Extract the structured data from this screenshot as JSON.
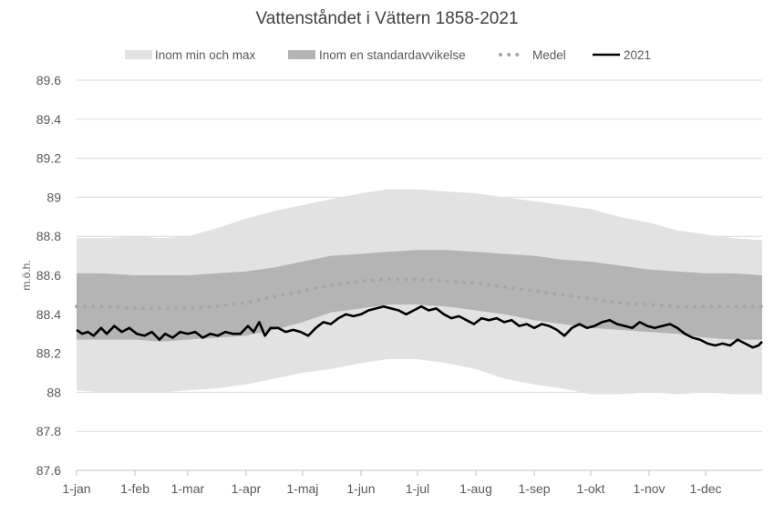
{
  "chart_data": {
    "type": "area",
    "title": "Vattenståndet i Vättern 1858-2021",
    "xlabel": "",
    "ylabel": "m.ö.h.",
    "ylim": [
      87.6,
      89.6
    ],
    "yticks": [
      "87.6",
      "87.8",
      "88",
      "88.2",
      "88.4",
      "88.6",
      "88.8",
      "89",
      "89.2",
      "89.4",
      "89.6"
    ],
    "xlim": [
      1,
      365
    ],
    "month_ticks": [
      {
        "label": "1-jan",
        "day": 1
      },
      {
        "label": "1-feb",
        "day": 32
      },
      {
        "label": "1-mar",
        "day": 60
      },
      {
        "label": "1-apr",
        "day": 91
      },
      {
        "label": "1-maj",
        "day": 121
      },
      {
        "label": "1-jun",
        "day": 152
      },
      {
        "label": "1-jul",
        "day": 182
      },
      {
        "label": "1-aug",
        "day": 213
      },
      {
        "label": "1-sep",
        "day": 244
      },
      {
        "label": "1-okt",
        "day": 274
      },
      {
        "label": "1-nov",
        "day": 305
      },
      {
        "label": "1-dec",
        "day": 335
      }
    ],
    "grid": true,
    "legend_position": "top",
    "legend": [
      {
        "label": "Inom min och max",
        "color": "#e2e2e2"
      },
      {
        "label": "Inom en standardavvikelse",
        "color": "#b4b4b4"
      },
      {
        "label": "Medel",
        "color": "#a6a6a6"
      },
      {
        "label": "2021",
        "color": "#000000"
      }
    ],
    "series": [
      {
        "name": "Inom min och max",
        "day": [
          1,
          15,
          32,
          46,
          60,
          75,
          91,
          106,
          121,
          136,
          152,
          166,
          182,
          197,
          213,
          228,
          244,
          259,
          274,
          289,
          305,
          320,
          335,
          350,
          365
        ],
        "low": [
          88.01,
          88.0,
          88.0,
          88.0,
          88.01,
          88.02,
          88.04,
          88.07,
          88.1,
          88.12,
          88.15,
          88.17,
          88.17,
          88.15,
          88.12,
          88.07,
          88.04,
          88.02,
          87.99,
          87.99,
          88.0,
          87.99,
          88.0,
          87.99,
          87.99
        ],
        "high": [
          88.79,
          88.79,
          88.8,
          88.79,
          88.8,
          88.84,
          88.89,
          88.93,
          88.96,
          88.99,
          89.02,
          89.04,
          89.04,
          89.03,
          89.02,
          89.0,
          88.98,
          88.96,
          88.94,
          88.9,
          88.87,
          88.83,
          88.81,
          88.79,
          88.78
        ]
      },
      {
        "name": "Inom en standardavvikelse",
        "day": [
          1,
          15,
          32,
          46,
          60,
          75,
          91,
          106,
          121,
          136,
          152,
          166,
          182,
          197,
          213,
          228,
          244,
          259,
          274,
          289,
          305,
          320,
          335,
          350,
          365
        ],
        "low": [
          88.27,
          88.27,
          88.27,
          88.26,
          88.27,
          88.28,
          88.29,
          88.32,
          88.36,
          88.41,
          88.43,
          88.45,
          88.45,
          88.44,
          88.42,
          88.4,
          88.37,
          88.35,
          88.33,
          88.32,
          88.31,
          88.3,
          88.28,
          88.27,
          88.27
        ],
        "high": [
          88.61,
          88.61,
          88.6,
          88.6,
          88.6,
          88.61,
          88.62,
          88.64,
          88.67,
          88.7,
          88.71,
          88.72,
          88.73,
          88.73,
          88.72,
          88.71,
          88.7,
          88.68,
          88.67,
          88.65,
          88.63,
          88.62,
          88.61,
          88.61,
          88.6
        ]
      },
      {
        "name": "Medel",
        "day": [
          1,
          15,
          32,
          46,
          60,
          75,
          91,
          106,
          121,
          136,
          152,
          166,
          182,
          197,
          213,
          228,
          244,
          259,
          274,
          289,
          305,
          320,
          335,
          350,
          365
        ],
        "values": [
          88.44,
          88.44,
          88.43,
          88.43,
          88.43,
          88.44,
          88.46,
          88.49,
          88.52,
          88.55,
          88.57,
          88.58,
          88.58,
          88.57,
          88.56,
          88.54,
          88.52,
          88.5,
          88.48,
          88.46,
          88.45,
          88.44,
          88.44,
          88.44,
          88.44
        ]
      },
      {
        "name": "2021",
        "day": [
          1,
          4,
          7,
          10,
          14,
          17,
          21,
          25,
          29,
          33,
          37,
          41,
          45,
          48,
          52,
          56,
          60,
          64,
          68,
          72,
          76,
          80,
          84,
          88,
          92,
          95,
          98,
          101,
          104,
          108,
          112,
          116,
          120,
          124,
          128,
          132,
          136,
          140,
          144,
          148,
          152,
          156,
          160,
          164,
          168,
          172,
          176,
          180,
          184,
          188,
          192,
          196,
          200,
          204,
          208,
          212,
          216,
          220,
          224,
          228,
          232,
          236,
          240,
          244,
          248,
          252,
          256,
          260,
          264,
          268,
          272,
          276,
          280,
          284,
          288,
          292,
          296,
          300,
          304,
          308,
          312,
          316,
          320,
          324,
          328,
          332,
          336,
          340,
          344,
          348,
          352,
          356,
          360,
          363,
          365
        ],
        "values": [
          88.32,
          88.3,
          88.31,
          88.29,
          88.33,
          88.3,
          88.34,
          88.31,
          88.33,
          88.3,
          88.29,
          88.31,
          88.27,
          88.3,
          88.28,
          88.31,
          88.3,
          88.31,
          88.28,
          88.3,
          88.29,
          88.31,
          88.3,
          88.3,
          88.34,
          88.31,
          88.36,
          88.29,
          88.33,
          88.33,
          88.31,
          88.32,
          88.31,
          88.29,
          88.33,
          88.36,
          88.35,
          88.38,
          88.4,
          88.39,
          88.4,
          88.42,
          88.43,
          88.44,
          88.43,
          88.42,
          88.4,
          88.42,
          88.44,
          88.42,
          88.43,
          88.4,
          88.38,
          88.39,
          88.37,
          88.35,
          88.38,
          88.37,
          88.38,
          88.36,
          88.37,
          88.34,
          88.35,
          88.33,
          88.35,
          88.34,
          88.32,
          88.29,
          88.33,
          88.35,
          88.33,
          88.34,
          88.36,
          88.37,
          88.35,
          88.34,
          88.33,
          88.36,
          88.34,
          88.33,
          88.34,
          88.35,
          88.33,
          88.3,
          88.28,
          88.27,
          88.25,
          88.24,
          88.25,
          88.24,
          88.27,
          88.25,
          88.23,
          88.24,
          88.26
        ]
      }
    ]
  }
}
